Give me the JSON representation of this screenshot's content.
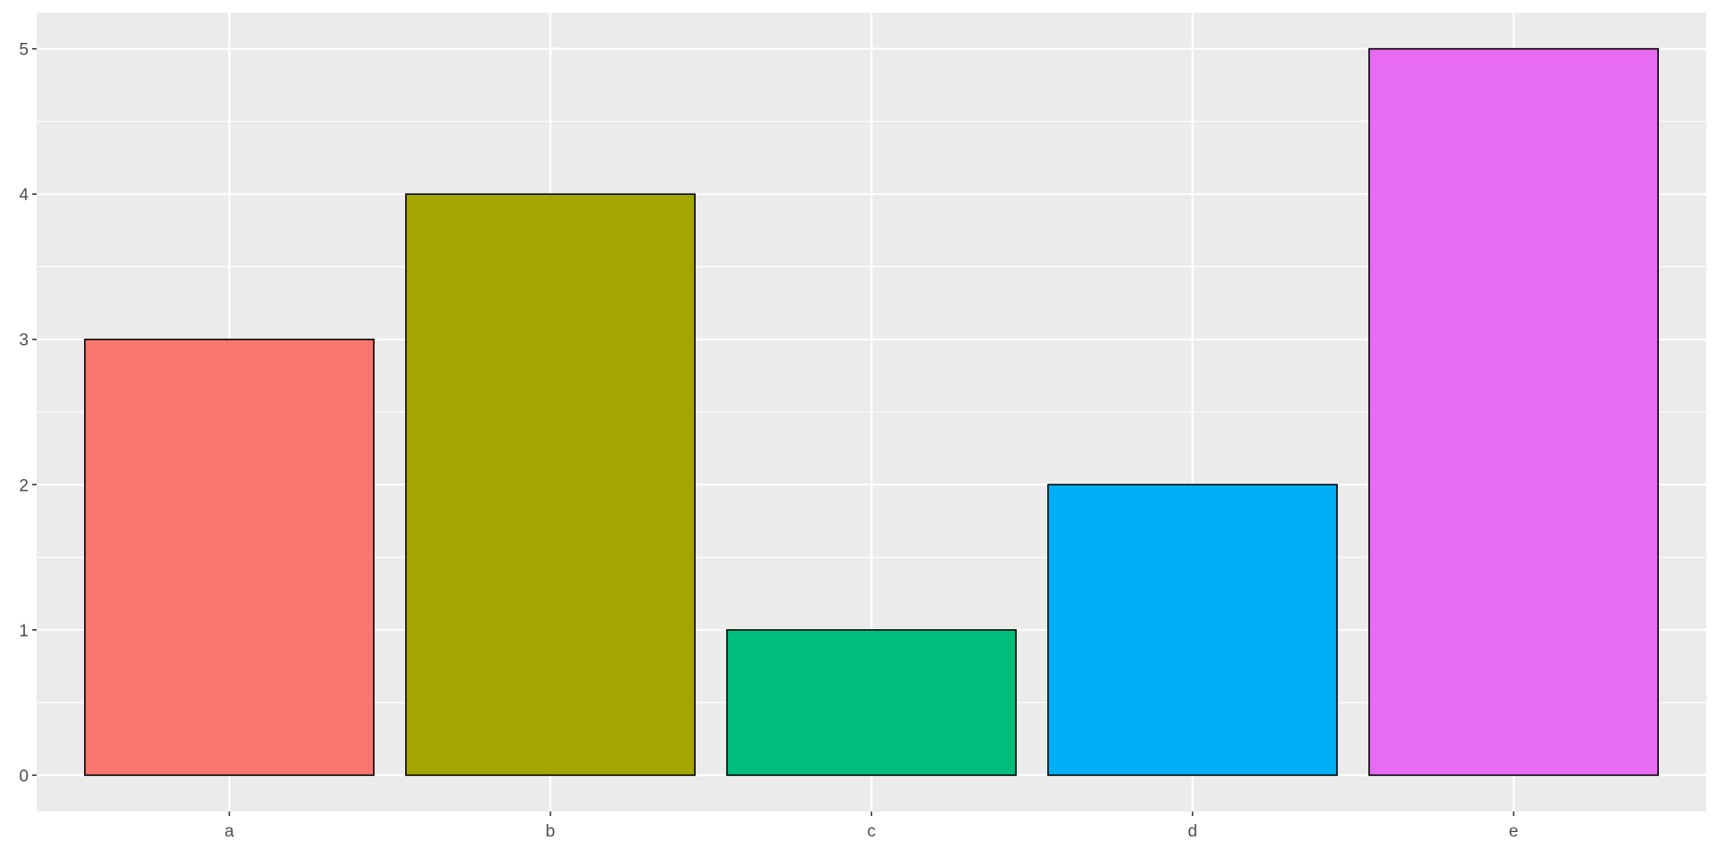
{
  "chart_data": {
    "type": "bar",
    "categories": [
      "a",
      "b",
      "c",
      "d",
      "e"
    ],
    "values": [
      3,
      4,
      1,
      2,
      5
    ],
    "colors": [
      "#F8766D",
      "#A3A500",
      "#00BF7D",
      "#00B0F6",
      "#E76BF3"
    ],
    "title": "",
    "xlabel": "",
    "ylabel": "",
    "ylim": [
      -0.25,
      5.25
    ],
    "yticks": [
      "0",
      "1",
      "2",
      "3",
      "4",
      "5"
    ],
    "grid": true,
    "legend": "none",
    "panel_background": "#EBEBEB",
    "grid_color": "#FFFFFF",
    "bar_outline": "#000000",
    "tick_label_color": "#4D4D4D"
  }
}
